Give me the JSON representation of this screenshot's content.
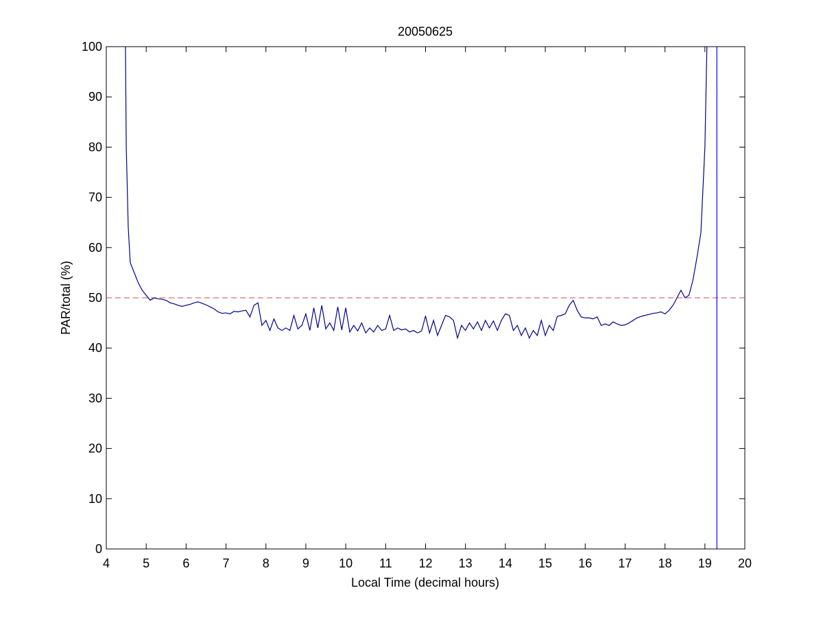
{
  "chart_data": {
    "type": "line",
    "title": "20050625",
    "x_label": "Local Time (decimal hours)",
    "y_label": "PAR/total (%)",
    "xlim": [
      4,
      20
    ],
    "ylim": [
      0,
      100
    ],
    "xticks": [
      4,
      5,
      6,
      7,
      8,
      9,
      10,
      11,
      12,
      13,
      14,
      15,
      16,
      17,
      18,
      19,
      20
    ],
    "yticks": [
      0,
      10,
      20,
      30,
      40,
      50,
      60,
      70,
      80,
      90,
      100
    ],
    "reference_line": {
      "value": 50,
      "color": "#c0504d"
    },
    "series": [
      {
        "color": "#00008b",
        "x": [
          4.48,
          4.5,
          4.55,
          4.6,
          4.7,
          4.8,
          4.9,
          5.0,
          5.1,
          5.2,
          5.3,
          5.4,
          5.5,
          5.6,
          5.7,
          5.8,
          5.9,
          6.0,
          6.1,
          6.2,
          6.3,
          6.4,
          6.5,
          6.6,
          6.7,
          6.8,
          6.9,
          7.0,
          7.1,
          7.2,
          7.3,
          7.4,
          7.5,
          7.6,
          7.7,
          7.8,
          7.9,
          8.0,
          8.1,
          8.2,
          8.3,
          8.4,
          8.5,
          8.6,
          8.7,
          8.8,
          8.9,
          9.0,
          9.1,
          9.2,
          9.3,
          9.4,
          9.5,
          9.6,
          9.7,
          9.8,
          9.9,
          10.0,
          10.1,
          10.2,
          10.3,
          10.4,
          10.5,
          10.6,
          10.7,
          10.8,
          10.9,
          11.0,
          11.1,
          11.2,
          11.3,
          11.4,
          11.5,
          11.6,
          11.7,
          11.8,
          11.9,
          12.0,
          12.1,
          12.2,
          12.3,
          12.4,
          12.5,
          12.6,
          12.7,
          12.8,
          12.9,
          13.0,
          13.1,
          13.2,
          13.3,
          13.4,
          13.5,
          13.6,
          13.7,
          13.8,
          13.9,
          14.0,
          14.1,
          14.2,
          14.3,
          14.4,
          14.5,
          14.6,
          14.7,
          14.8,
          14.9,
          15.0,
          15.1,
          15.2,
          15.3,
          15.4,
          15.5,
          15.6,
          15.7,
          15.8,
          15.9,
          16.0,
          16.1,
          16.2,
          16.3,
          16.4,
          16.5,
          16.6,
          16.7,
          16.8,
          16.9,
          17.0,
          17.1,
          17.2,
          17.3,
          17.4,
          17.5,
          17.6,
          17.7,
          17.8,
          17.9,
          18.0,
          18.1,
          18.2,
          18.3,
          18.4,
          18.5,
          18.6,
          18.7,
          18.8,
          18.9,
          19.0,
          19.05
        ],
        "values": [
          100,
          80,
          64,
          57,
          55,
          53,
          51.5,
          50.5,
          49.5,
          50,
          49.8,
          49.7,
          49.5,
          49,
          48.8,
          48.5,
          48.3,
          48.5,
          48.7,
          49,
          49.2,
          48.9,
          48.6,
          48.2,
          47.8,
          47.2,
          46.9,
          47,
          46.8,
          47.3,
          47.2,
          47.4,
          47.5,
          46.2,
          48.5,
          49,
          44.5,
          45.5,
          43.5,
          45.8,
          44,
          43.5,
          44,
          43.5,
          46.5,
          43.8,
          44.5,
          46.8,
          43.5,
          48,
          44,
          48.5,
          43.8,
          45,
          43.5,
          48.2,
          43.6,
          48,
          43.2,
          44.5,
          43.4,
          45,
          43,
          44,
          43.2,
          44.5,
          43.5,
          43.8,
          46.5,
          43.5,
          44,
          43.6,
          43.8,
          43.2,
          43.5,
          43,
          43.4,
          46.4,
          43,
          45.5,
          42.5,
          44.5,
          46.5,
          46.2,
          45.5,
          42,
          44.5,
          43.5,
          45,
          43.8,
          45.2,
          43.5,
          45.5,
          44,
          45.4,
          43.5,
          45.5,
          46.8,
          46.5,
          43.5,
          44.5,
          42.5,
          44,
          42,
          43.5,
          42.5,
          45.5,
          42.5,
          44.5,
          43.5,
          46.3,
          46.5,
          46.8,
          48.5,
          49.5,
          47.5,
          46.2,
          46,
          46,
          45.8,
          46.2,
          44.5,
          44.8,
          44.5,
          45.2,
          44.8,
          44.5,
          44.6,
          45,
          45.5,
          46,
          46.3,
          46.5,
          46.7,
          46.9,
          47,
          47.2,
          46.8,
          47.5,
          48.5,
          50,
          51.5,
          50,
          50.5,
          53.5,
          58,
          63,
          80,
          100
        ]
      },
      {
        "color": "#0000ff",
        "x": [
          19.3,
          19.3
        ],
        "values": [
          0,
          100
        ]
      }
    ]
  }
}
